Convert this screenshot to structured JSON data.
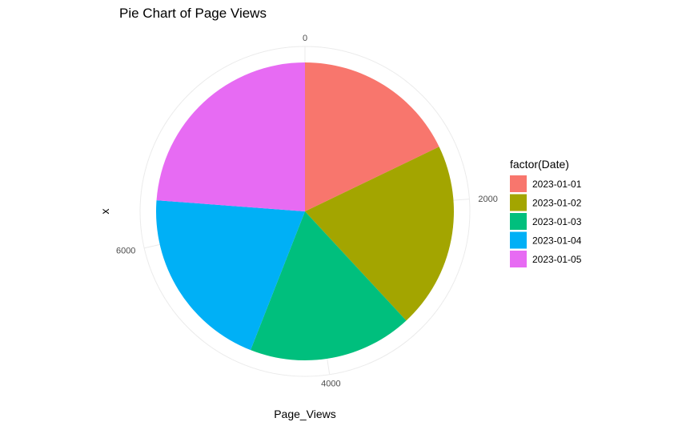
{
  "chart_data": {
    "type": "pie",
    "title": "Pie Chart of Page Views",
    "xlabel": "Page_Views",
    "ylabel": "x",
    "categories": [
      "2023-01-01",
      "2023-01-02",
      "2023-01-03",
      "2023-01-04",
      "2023-01-05"
    ],
    "values": [
      1500,
      1700,
      1500,
      1700,
      2000
    ],
    "colors": [
      "#F8766D",
      "#A3A500",
      "#00BF7D",
      "#00B0F6",
      "#E76BF3"
    ],
    "theta_ticks": [
      {
        "value": 0,
        "label": "0"
      },
      {
        "value": 2000,
        "label": "2000"
      },
      {
        "value": 4000,
        "label": "4000"
      },
      {
        "value": 6000,
        "label": "6000"
      }
    ],
    "legend": {
      "title": "factor(Date)",
      "position": "right"
    },
    "grid": true,
    "direction": "clockwise",
    "start": "top"
  }
}
